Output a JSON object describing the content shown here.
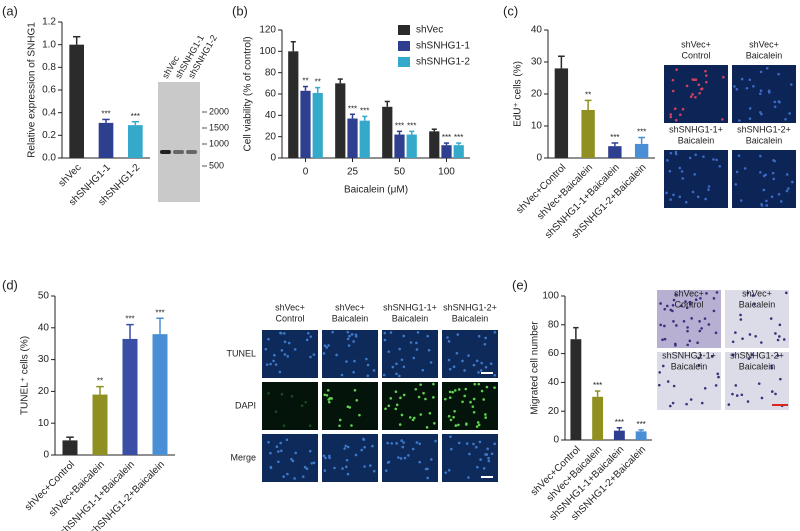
{
  "chart_data": [
    {
      "type": "bar",
      "panel": "(a)",
      "ylabel": "Relative expression of SNHG1",
      "categories": [
        "shVec",
        "shSNHG1-1",
        "shSNHG1-2"
      ],
      "values": [
        1.0,
        0.31,
        0.29
      ],
      "errors": [
        0.07,
        0.03,
        0.03
      ],
      "colors": [
        "#2b2b2b",
        "#2e3f8f",
        "#35a9c9"
      ],
      "significance": [
        null,
        "***",
        "***"
      ],
      "ylim": [
        0,
        1.2
      ],
      "yticks": [
        {
          "value": 0,
          "label": "0.0"
        },
        0.2,
        0.4,
        0.6,
        0.8,
        {
          "value": 1,
          "label": "1.0"
        },
        1.2
      ],
      "gel": {
        "lanes": [
          "shVec",
          "shSNHG1-1",
          "shSNHG1-2"
        ],
        "markers": [
          2000,
          1500,
          1000,
          500
        ]
      }
    },
    {
      "type": "grouped-bar",
      "panel": "(b)",
      "ylabel": "Cell viability (% of control)",
      "xlabel": "Baicalein (μM)",
      "categories": [
        "0",
        "25",
        "50",
        "100"
      ],
      "series": [
        {
          "name": "shVec",
          "color": "#2b2b2b",
          "values": [
            100,
            70,
            48,
            25
          ],
          "errors": [
            9,
            4,
            5,
            2
          ],
          "significance": [
            null,
            null,
            null,
            null
          ]
        },
        {
          "name": "shSNHG1-1",
          "color": "#2e3f8f",
          "values": [
            63,
            37,
            22,
            12
          ],
          "errors": [
            4,
            4,
            3,
            2
          ],
          "significance": [
            "**",
            "***",
            "***",
            "***"
          ]
        },
        {
          "name": "shSNHG1-2",
          "color": "#35a9c9",
          "values": [
            61,
            35,
            22,
            12
          ],
          "errors": [
            5,
            4,
            3,
            2
          ],
          "significance": [
            "**",
            "***",
            "***",
            "***"
          ]
        }
      ],
      "ylim": [
        0,
        120
      ],
      "yticks": [
        0,
        20,
        40,
        60,
        80,
        100,
        120
      ]
    },
    {
      "type": "bar",
      "panel": "(c)",
      "ylabel": "EdU⁺ cells (%)",
      "categories": [
        "shVec+Control",
        "shVec+Baicalein",
        "shSNHG1-1+Baicalein",
        "shSNHG1-2+Baicalein"
      ],
      "values": [
        28,
        15,
        3.7,
        4.4
      ],
      "errors": [
        3.8,
        3,
        1,
        2
      ],
      "colors": [
        "#2b2b2b",
        "#8f8f22",
        "#2e3f8f",
        "#4a8fd6"
      ],
      "significance": [
        null,
        "**",
        "***",
        "***"
      ],
      "ylim": [
        0,
        40
      ],
      "yticks": [
        0,
        10,
        20,
        30,
        40
      ],
      "images": {
        "labels": [
          [
            "shVec+",
            "Control"
          ],
          [
            "shVec+",
            "Baicalein"
          ],
          [
            "shSNHG1-1+",
            "Baicalein"
          ],
          [
            "shSNHG1-2+",
            "Baicalein"
          ]
        ]
      }
    },
    {
      "type": "bar",
      "panel": "(d)",
      "ylabel": "TUNEL⁺ cells (%)",
      "categories": [
        "shVec+Control",
        "shVec+Baicalein",
        "shSNHG1-1+Baicalein",
        "shSNHG1-2+Baicalein"
      ],
      "values": [
        4.6,
        19,
        36.5,
        38
      ],
      "errors": [
        1,
        2.5,
        4.5,
        5
      ],
      "colors": [
        "#2b2b2b",
        "#8f8f22",
        "#3b4ea6",
        "#4a8fd6"
      ],
      "significance": [
        null,
        "**",
        "***",
        "***"
      ],
      "ylim": [
        0,
        50
      ],
      "yticks": [
        0,
        10,
        20,
        30,
        40,
        50
      ],
      "images": {
        "labels": [
          [
            "shVec+",
            "Control"
          ],
          [
            "shVec+",
            "Baicalein"
          ],
          [
            "shSNHG1-1+",
            "Baicalein"
          ],
          [
            "shSNHG1-2+",
            "Baicalein"
          ]
        ],
        "row_labels": [
          "TUNEL",
          "DAPI",
          "Merge"
        ]
      }
    },
    {
      "type": "bar",
      "panel": "(e)",
      "ylabel": "Migrated cell number",
      "categories": [
        "shVec+Control",
        "shVec+Baicalein",
        "shSNHG1-1+Baicalein",
        "shSNHG1-2+Baicalein"
      ],
      "values": [
        70,
        30,
        6.5,
        6
      ],
      "errors": [
        8,
        4,
        2,
        1
      ],
      "colors": [
        "#2b2b2b",
        "#8f8f22",
        "#2e3f8f",
        "#4a8fd6"
      ],
      "significance": [
        null,
        "***",
        "***",
        "***"
      ],
      "ylim": [
        0,
        100
      ],
      "yticks": [
        0,
        20,
        40,
        60,
        80,
        100
      ],
      "images": {
        "labels": [
          [
            "shVec+",
            "Control"
          ],
          [
            "shVec+",
            "Baicalein"
          ],
          [
            "shSNHG1-1+",
            "Baicalein"
          ],
          [
            "shSNHG1-2+",
            "Baicalein"
          ]
        ]
      }
    }
  ]
}
